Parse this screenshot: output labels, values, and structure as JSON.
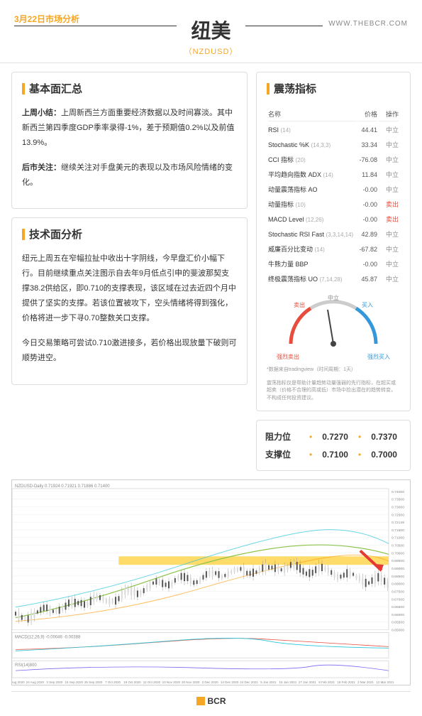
{
  "header": {
    "date_label": "3月22日市场分析",
    "title": "纽美",
    "subtitle": "（NZDUSD）",
    "website": "WWW.THEBCR.COM"
  },
  "fundamental": {
    "title": "基本面汇总",
    "p1_label": "上周小结：",
    "p1_text": "上周新西兰方面重要经济数据以及时间寡淡。其中新西兰第四季度GDP季率录得-1%，差于预期值0.2%以及前值13.9%。",
    "p2_label": "后市关注：",
    "p2_text": "继续关注对手盘美元的表现以及市场风险情绪的变化。"
  },
  "technical": {
    "title": "技术面分析",
    "p1": "纽元上周五在窄幅拉扯中收出十字阴线，今早盘汇价小幅下行。目前继续重点关注图示自去年9月低点引申的斐波那契支撑38.2供给区，即0.710的支撑表现，该区域在过去近四个月中提供了坚实的支撑。若该位置被攻下，空头情绪将得到强化，价格将进一步下寻0.70整数关口支撑。",
    "p2": "今日交易策略可尝试0.710激进接多，若价格出现放量下破则可顺势进空。"
  },
  "oscillator": {
    "title": "震荡指标",
    "cols": {
      "name": "名称",
      "price": "价格",
      "action": "操作"
    },
    "rows": [
      {
        "name": "RSI",
        "sub": "(14)",
        "value": "44.41",
        "action": "中立",
        "cls": "neutral"
      },
      {
        "name": "Stochastic %K",
        "sub": "(14,3,3)",
        "value": "33.34",
        "action": "中立",
        "cls": "neutral"
      },
      {
        "name": "CCI 指标",
        "sub": "(20)",
        "value": "-76.08",
        "action": "中立",
        "cls": "neutral"
      },
      {
        "name": "平均趋向指数 ADX",
        "sub": "(14)",
        "value": "11.84",
        "action": "中立",
        "cls": "neutral"
      },
      {
        "name": "动量震荡指标 AO",
        "sub": "",
        "value": "-0.00",
        "action": "中立",
        "cls": "neutral"
      },
      {
        "name": "动量指标",
        "sub": "(10)",
        "value": "-0.00",
        "action": "卖出",
        "cls": "sell"
      },
      {
        "name": "MACD Level",
        "sub": "(12,26)",
        "value": "-0.00",
        "action": "卖出",
        "cls": "sell"
      },
      {
        "name": "Stochastic RSI Fast",
        "sub": "(3,3,14,14)",
        "value": "42.89",
        "action": "中立",
        "cls": "neutral"
      },
      {
        "name": "威廉百分比变动",
        "sub": "(14)",
        "value": "-67.82",
        "action": "中立",
        "cls": "neutral"
      },
      {
        "name": "牛熊力量 BBP",
        "sub": "",
        "value": "-0.00",
        "action": "中立",
        "cls": "neutral"
      },
      {
        "name": "终极震荡指标 UO",
        "sub": "(7,14,28)",
        "value": "45.87",
        "action": "中立",
        "cls": "neutral"
      }
    ],
    "gauge": {
      "top": "中立",
      "left1": "卖出",
      "left2": "强烈卖出",
      "right1": "买入",
      "right2": "强烈买入",
      "arc_sell": "#e74c3c",
      "arc_neutral": "#bbb",
      "arc_buy": "#3498db",
      "needle_angle": -10
    },
    "disclaimer1": "*数据来自tradingview（时间周期：1天）",
    "disclaimer2": "震荡指标仅是帮助计量趋势动量强弱的先行指标，在超买或超卖（价格不合理的高或低）市场中捡出潜在的趋势转变，不构成任何投资建议。"
  },
  "levels": {
    "resistance_label": "阻力位",
    "resistance": [
      "0.7270",
      "0.7370"
    ],
    "support_label": "支撑位",
    "support": [
      "0.7100",
      "0.7000"
    ]
  },
  "chart": {
    "chart_title": "NZDUSD-Daily  0.71924 0.71921 0.71886 0.71400",
    "y_labels": [
      "0.74000",
      "0.73500",
      "0.73000",
      "0.72500",
      "0.72149",
      "0.71500",
      "0.71000",
      "0.70500",
      "0.70000",
      "0.69500",
      "0.69000",
      "0.68500",
      "0.68000",
      "0.67500",
      "0.67000",
      "0.66500",
      "0.66000",
      "0.65500",
      "0.65000"
    ],
    "x_labels": [
      "12 Aug 2020",
      "24 Aug 2020",
      "3 Sep 2020",
      "15 Sep 2020",
      "25 Sep 2020",
      "7 Oct 2020",
      "19 Oct 2020",
      "12 Oct 2020",
      "10 Nov 2020",
      "20 Nov 2020",
      "2 Dec 2020",
      "14 Dec 2020",
      "24 Dec 2021",
      "5 Jan 2021",
      "15 Jan 2021",
      "27 Jan 2021",
      "8 Feb 2021",
      "18 Feb 2021",
      "2 Mar 2021",
      "12 Mar 2021"
    ],
    "highlight_color": "#ffd54f",
    "arrow_color": "#e53935",
    "ma_colors": [
      "#8bc34a",
      "#ff9800",
      "#26c6da"
    ],
    "macd_label": "MACD(12,26,9)  -0.00046 -0.00388",
    "rsi_label": "RSI(14)800"
  },
  "footer": {
    "brand": "BCR"
  }
}
